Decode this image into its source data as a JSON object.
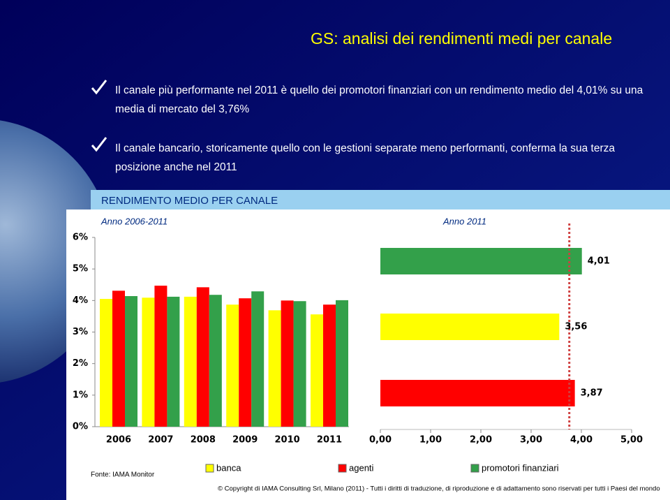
{
  "title": "GS: analisi dei rendimenti medi per canale",
  "bullets": [
    "Il canale più performante nel 2011 è quello dei promotori finanziari con un rendimento medio del 4,01% su una media di mercato del 3,76%",
    "Il canale bancario, storicamente quello con le gestioni separate meno performanti, conferma la sua terza posizione anche nel 2011"
  ],
  "chart_header": "RENDIMENTO MEDIO PER CANALE",
  "chart_data": [
    {
      "type": "bar",
      "subtitle": "Anno 2006-2011",
      "categories": [
        "2006",
        "2007",
        "2008",
        "2009",
        "2010",
        "2011"
      ],
      "series": [
        {
          "name": "banca",
          "color": "#ffff00",
          "values": [
            4.05,
            4.09,
            4.12,
            3.87,
            3.69,
            3.56
          ]
        },
        {
          "name": "agenti",
          "color": "#ff0000",
          "values": [
            4.31,
            4.47,
            4.42,
            4.07,
            4.0,
            3.87
          ]
        },
        {
          "name": "promotori finanziari",
          "color": "#33a04a",
          "values": [
            4.14,
            4.12,
            4.18,
            4.29,
            3.98,
            4.01
          ]
        }
      ],
      "ylim": [
        0,
        6
      ],
      "yticks": [
        {
          "value": 0,
          "label": "0%"
        },
        {
          "value": 1,
          "label": "1%"
        },
        {
          "value": 2,
          "label": "2%"
        },
        {
          "value": 3,
          "label": "3%"
        },
        {
          "value": 4,
          "label": "4%"
        },
        {
          "value": 5,
          "label": "5%"
        },
        {
          "value": 6,
          "label": "6%"
        }
      ],
      "legend": "bottom"
    },
    {
      "type": "hbar",
      "subtitle": "Anno 2011",
      "values": [
        4.01,
        3.56,
        3.87
      ],
      "value_labels": [
        "4,01",
        "3,56",
        "3,87"
      ],
      "colors": [
        "#33a04a",
        "#ffff00",
        "#ff0000"
      ],
      "xlim": [
        0,
        5
      ],
      "xticks": [
        {
          "value": 0,
          "label": "0,00"
        },
        {
          "value": 1,
          "label": "1,00"
        },
        {
          "value": 2,
          "label": "2,00"
        },
        {
          "value": 3,
          "label": "3,00"
        },
        {
          "value": 4,
          "label": "4,00"
        },
        {
          "value": 5,
          "label": "5,00"
        }
      ],
      "average": 3.76
    }
  ],
  "source": "Fonte: IAMA Monitor",
  "copyright": "© Copyright di IAMA Consulting Srl, Milano (2011) - Tutti i diritti di traduzione, di riproduzione e di adattamento sono riservati per tutti i Paesi del mondo"
}
